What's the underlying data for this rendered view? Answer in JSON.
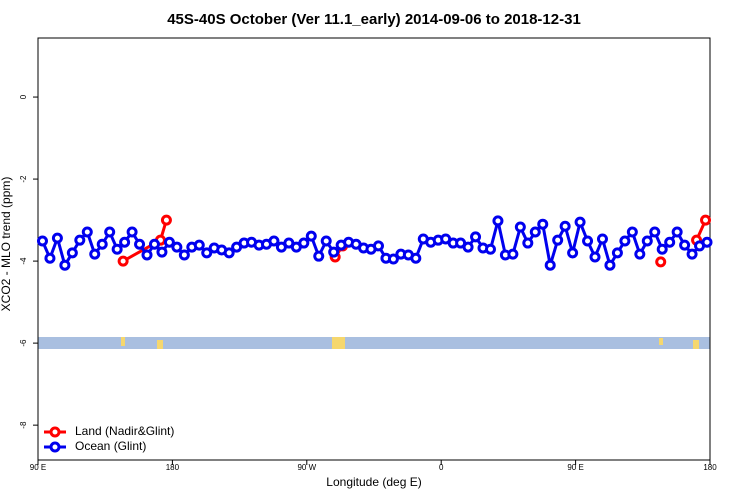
{
  "chart_data": {
    "type": "line",
    "title": "45S-40S October (Ver 11.1_early)   2014-09-06 to 2018-12-31",
    "xlabel": "Longitude (deg E)",
    "ylabel": "XCO2 - MLO trend (ppm)",
    "xlim": [
      90,
      540
    ],
    "ylim": [
      -8.85,
      1.44
    ],
    "xticks": [
      {
        "value": 90,
        "label": "90 E"
      },
      180,
      {
        "value": 270,
        "label": "90 W"
      },
      {
        "value": 360,
        "label": "0"
      },
      {
        "value": 450,
        "label": "90 E"
      },
      {
        "value": 540,
        "label": "180"
      }
    ],
    "yticks": [
      0,
      -2,
      -4,
      -6,
      -8
    ],
    "legend": "bottomleft",
    "series": [
      {
        "name": "Land (Nadir&Glint)",
        "color": "#ff0000",
        "x": [
          147,
          172,
          176,
          null,
          289,
          294,
          null,
          507,
          null,
          531,
          537
        ],
        "values": [
          -4.0,
          -3.49,
          -3.0,
          null,
          -3.9,
          -3.63,
          null,
          -4.02,
          null,
          -3.49,
          -3.0
        ]
      },
      {
        "name": "Ocean (Glint)",
        "color": "#0000ee",
        "x": [
          93,
          98,
          103,
          108,
          113,
          118,
          123,
          128,
          133,
          138,
          143,
          148,
          153,
          158,
          163,
          168,
          173,
          178,
          183,
          188,
          193,
          198,
          203,
          208,
          213,
          218,
          223,
          228,
          233,
          238,
          243,
          248,
          253,
          258,
          263,
          268,
          273,
          278,
          283,
          288,
          293,
          298,
          303,
          308,
          313,
          318,
          323,
          328,
          333,
          338,
          343,
          348,
          353,
          358,
          363,
          368,
          373,
          378,
          383,
          388,
          393,
          398,
          403,
          408,
          413,
          418,
          423,
          428,
          433,
          438,
          443,
          448,
          453,
          458,
          463,
          468,
          473,
          478,
          483,
          488,
          493,
          498,
          503,
          508,
          513,
          518,
          523,
          528,
          533,
          538
        ],
        "values": [
          -3.51,
          -3.93,
          -3.44,
          -4.1,
          -3.8,
          -3.49,
          -3.29,
          -3.83,
          -3.59,
          -3.29,
          -3.71,
          -3.54,
          -3.29,
          -3.59,
          -3.85,
          -3.59,
          -3.78,
          -3.54,
          -3.66,
          -3.85,
          -3.66,
          -3.61,
          -3.8,
          -3.68,
          -3.73,
          -3.8,
          -3.66,
          -3.56,
          -3.54,
          -3.61,
          -3.59,
          -3.51,
          -3.66,
          -3.56,
          -3.66,
          -3.56,
          -3.39,
          -3.88,
          -3.51,
          -3.78,
          -3.61,
          -3.54,
          -3.59,
          -3.68,
          -3.71,
          -3.63,
          -3.93,
          -3.95,
          -3.83,
          -3.85,
          -3.93,
          -3.46,
          -3.54,
          -3.49,
          -3.46,
          -3.56,
          -3.56,
          -3.66,
          -3.41,
          -3.68,
          -3.71,
          -3.02,
          -3.85,
          -3.83,
          -3.17,
          -3.56,
          -3.29,
          -3.1,
          -4.1,
          -3.49,
          -3.15,
          -3.8,
          -3.05,
          -3.51,
          -3.9,
          -3.46,
          -4.1,
          -3.8,
          -3.51,
          -3.29,
          -3.83,
          -3.51,
          -3.29,
          -3.71,
          -3.54,
          -3.29,
          -3.61,
          -3.83,
          -3.63,
          -3.54
        ]
      }
    ]
  }
}
